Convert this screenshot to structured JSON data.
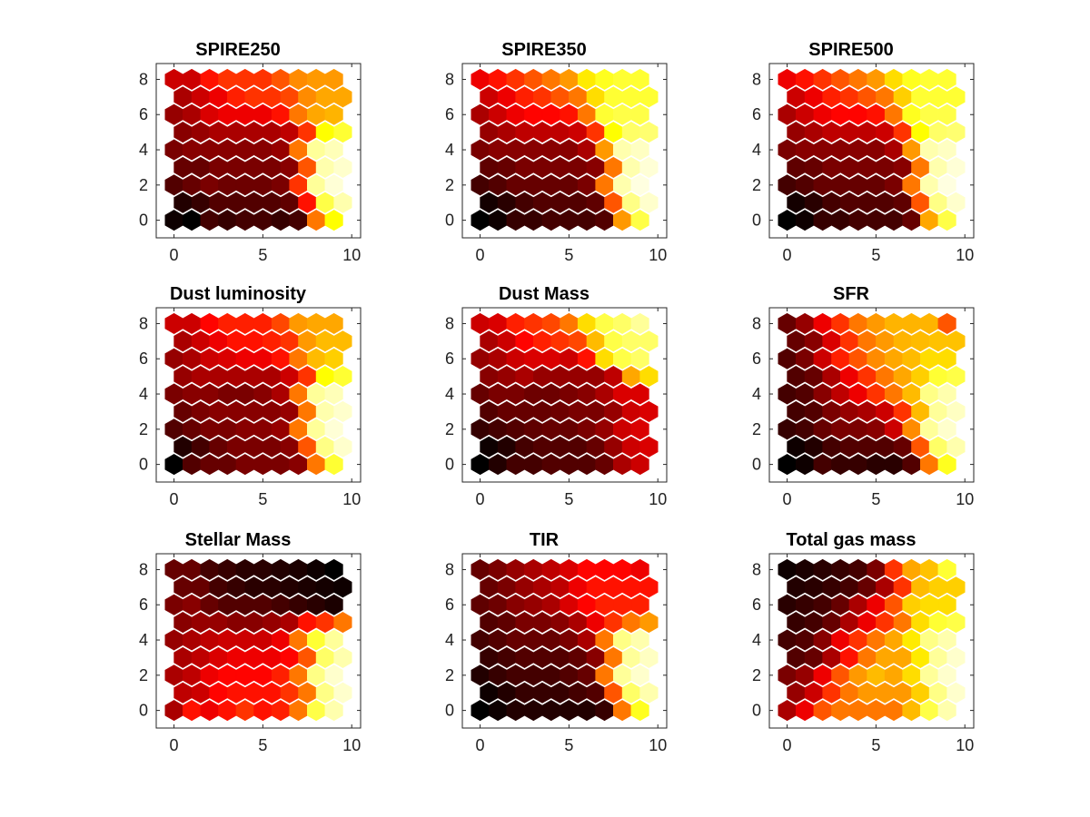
{
  "figure": {
    "background": "#ffffff",
    "colormap": "hot"
  },
  "chart_data": [
    {
      "type": "heatmap",
      "subtype": "hexagonal-som-component-plane",
      "title": "SPIRE250",
      "xticks": [
        "0",
        "5",
        "10"
      ],
      "yticks": [
        "0",
        "2",
        "4",
        "6",
        "8"
      ],
      "xlim": [
        -1,
        10.5
      ],
      "ylim": [
        -1,
        8.9
      ],
      "grid_cols": 10,
      "grid_rows": 9,
      "values": [
        [
          0.02,
          0.0,
          0.1,
          0.08,
          0.1,
          0.1,
          0.08,
          0.1,
          0.55,
          0.75
        ],
        [
          0.05,
          0.08,
          0.12,
          0.12,
          0.12,
          0.12,
          0.14,
          0.4,
          0.82,
          0.92
        ],
        [
          0.12,
          0.15,
          0.18,
          0.16,
          0.16,
          0.16,
          0.18,
          0.45,
          0.9,
          0.96
        ],
        [
          0.15,
          0.15,
          0.18,
          0.18,
          0.18,
          0.18,
          0.2,
          0.5,
          0.92,
          0.95
        ],
        [
          0.18,
          0.2,
          0.2,
          0.2,
          0.2,
          0.2,
          0.22,
          0.55,
          0.9,
          0.93
        ],
        [
          0.2,
          0.22,
          0.25,
          0.25,
          0.25,
          0.25,
          0.28,
          0.45,
          0.75,
          0.8
        ],
        [
          0.22,
          0.25,
          0.32,
          0.35,
          0.35,
          0.35,
          0.4,
          0.55,
          0.62,
          0.64
        ],
        [
          0.25,
          0.3,
          0.35,
          0.42,
          0.45,
          0.45,
          0.48,
          0.58,
          0.62,
          0.62
        ],
        [
          0.3,
          0.3,
          0.4,
          0.45,
          0.45,
          0.45,
          0.5,
          0.58,
          0.6,
          0.6
        ]
      ]
    },
    {
      "type": "heatmap",
      "subtype": "hexagonal-som-component-plane",
      "title": "SPIRE350",
      "xticks": [
        "0",
        "5",
        "10"
      ],
      "yticks": [
        "0",
        "2",
        "4",
        "6",
        "8"
      ],
      "xlim": [
        -1,
        10.5
      ],
      "ylim": [
        -1,
        8.9
      ],
      "grid_cols": 10,
      "grid_rows": 9,
      "values": [
        [
          0.0,
          0.02,
          0.08,
          0.08,
          0.1,
          0.1,
          0.1,
          0.12,
          0.6,
          0.82
        ],
        [
          0.03,
          0.06,
          0.1,
          0.12,
          0.12,
          0.12,
          0.14,
          0.5,
          0.88,
          0.95
        ],
        [
          0.1,
          0.12,
          0.15,
          0.15,
          0.15,
          0.15,
          0.18,
          0.55,
          0.92,
          0.97
        ],
        [
          0.14,
          0.15,
          0.18,
          0.18,
          0.18,
          0.18,
          0.2,
          0.55,
          0.92,
          0.96
        ],
        [
          0.18,
          0.2,
          0.2,
          0.2,
          0.2,
          0.2,
          0.25,
          0.6,
          0.92,
          0.94
        ],
        [
          0.22,
          0.25,
          0.28,
          0.28,
          0.28,
          0.3,
          0.45,
          0.75,
          0.85,
          0.86
        ],
        [
          0.25,
          0.3,
          0.35,
          0.38,
          0.38,
          0.4,
          0.55,
          0.8,
          0.82,
          0.82
        ],
        [
          0.3,
          0.35,
          0.42,
          0.45,
          0.5,
          0.55,
          0.7,
          0.8,
          0.8,
          0.8
        ],
        [
          0.35,
          0.4,
          0.45,
          0.5,
          0.55,
          0.6,
          0.72,
          0.78,
          0.8,
          0.8
        ]
      ]
    },
    {
      "type": "heatmap",
      "subtype": "hexagonal-som-component-plane",
      "title": "SPIRE500",
      "xticks": [
        "0",
        "5",
        "10"
      ],
      "yticks": [
        "0",
        "2",
        "4",
        "6",
        "8"
      ],
      "xlim": [
        -1,
        10.5
      ],
      "ylim": [
        -1,
        8.9
      ],
      "grid_cols": 10,
      "grid_rows": 9,
      "values": [
        [
          0.0,
          0.02,
          0.08,
          0.08,
          0.1,
          0.1,
          0.1,
          0.15,
          0.62,
          0.82
        ],
        [
          0.03,
          0.06,
          0.1,
          0.12,
          0.12,
          0.12,
          0.14,
          0.5,
          0.88,
          0.95
        ],
        [
          0.1,
          0.12,
          0.15,
          0.15,
          0.15,
          0.15,
          0.18,
          0.55,
          0.92,
          0.97
        ],
        [
          0.14,
          0.15,
          0.18,
          0.18,
          0.18,
          0.18,
          0.2,
          0.55,
          0.92,
          0.96
        ],
        [
          0.18,
          0.2,
          0.2,
          0.2,
          0.2,
          0.2,
          0.25,
          0.6,
          0.92,
          0.94
        ],
        [
          0.22,
          0.25,
          0.28,
          0.28,
          0.28,
          0.3,
          0.45,
          0.75,
          0.85,
          0.86
        ],
        [
          0.25,
          0.3,
          0.35,
          0.38,
          0.38,
          0.4,
          0.55,
          0.78,
          0.82,
          0.82
        ],
        [
          0.3,
          0.35,
          0.42,
          0.45,
          0.5,
          0.55,
          0.68,
          0.8,
          0.8,
          0.8
        ],
        [
          0.35,
          0.4,
          0.45,
          0.5,
          0.55,
          0.6,
          0.7,
          0.78,
          0.8,
          0.8
        ]
      ]
    },
    {
      "type": "heatmap",
      "subtype": "hexagonal-som-component-plane",
      "title": "Dust luminosity",
      "xticks": [
        "0",
        "5",
        "10"
      ],
      "yticks": [
        "0",
        "2",
        "4",
        "6",
        "8"
      ],
      "xlim": [
        -1,
        10.5
      ],
      "ylim": [
        -1,
        8.9
      ],
      "grid_cols": 10,
      "grid_rows": 9,
      "values": [
        [
          0.0,
          0.12,
          0.15,
          0.15,
          0.18,
          0.18,
          0.18,
          0.2,
          0.55,
          0.8
        ],
        [
          0.05,
          0.1,
          0.15,
          0.18,
          0.18,
          0.18,
          0.2,
          0.5,
          0.88,
          0.95
        ],
        [
          0.12,
          0.15,
          0.18,
          0.18,
          0.2,
          0.2,
          0.22,
          0.55,
          0.9,
          0.96
        ],
        [
          0.15,
          0.18,
          0.2,
          0.2,
          0.2,
          0.2,
          0.22,
          0.55,
          0.92,
          0.95
        ],
        [
          0.18,
          0.2,
          0.2,
          0.18,
          0.18,
          0.2,
          0.25,
          0.55,
          0.9,
          0.93
        ],
        [
          0.22,
          0.25,
          0.25,
          0.25,
          0.25,
          0.25,
          0.3,
          0.45,
          0.75,
          0.8
        ],
        [
          0.22,
          0.25,
          0.3,
          0.32,
          0.35,
          0.35,
          0.4,
          0.55,
          0.65,
          0.68
        ],
        [
          0.25,
          0.3,
          0.35,
          0.4,
          0.4,
          0.42,
          0.45,
          0.6,
          0.65,
          0.65
        ],
        [
          0.3,
          0.3,
          0.38,
          0.42,
          0.42,
          0.42,
          0.48,
          0.6,
          0.62,
          0.62
        ]
      ]
    },
    {
      "type": "heatmap",
      "subtype": "hexagonal-som-component-plane",
      "title": "Dust Mass",
      "xticks": [
        "0",
        "5",
        "10"
      ],
      "yticks": [
        "0",
        "2",
        "4",
        "6",
        "8"
      ],
      "xlim": [
        -1,
        10.5
      ],
      "ylim": [
        -1,
        8.9
      ],
      "grid_cols": 10,
      "grid_rows": 9,
      "values": [
        [
          0.0,
          0.05,
          0.1,
          0.1,
          0.12,
          0.12,
          0.12,
          0.15,
          0.25,
          0.3
        ],
        [
          0.02,
          0.05,
          0.1,
          0.12,
          0.12,
          0.12,
          0.15,
          0.22,
          0.3,
          0.32
        ],
        [
          0.08,
          0.1,
          0.12,
          0.14,
          0.15,
          0.15,
          0.18,
          0.22,
          0.3,
          0.32
        ],
        [
          0.12,
          0.15,
          0.15,
          0.15,
          0.16,
          0.18,
          0.18,
          0.22,
          0.3,
          0.32
        ],
        [
          0.15,
          0.18,
          0.18,
          0.16,
          0.16,
          0.18,
          0.2,
          0.25,
          0.32,
          0.32
        ],
        [
          0.2,
          0.22,
          0.25,
          0.22,
          0.22,
          0.22,
          0.22,
          0.28,
          0.62,
          0.7
        ],
        [
          0.22,
          0.25,
          0.3,
          0.32,
          0.32,
          0.3,
          0.4,
          0.7,
          0.82,
          0.85
        ],
        [
          0.25,
          0.3,
          0.38,
          0.42,
          0.45,
          0.48,
          0.65,
          0.82,
          0.85,
          0.85
        ],
        [
          0.3,
          0.32,
          0.42,
          0.45,
          0.48,
          0.55,
          0.7,
          0.82,
          0.85,
          0.9
        ]
      ]
    },
    {
      "type": "heatmap",
      "subtype": "hexagonal-som-component-plane",
      "title": "SFR",
      "xticks": [
        "0",
        "5",
        "10"
      ],
      "yticks": [
        "0",
        "2",
        "4",
        "6",
        "8"
      ],
      "xlim": [
        -1,
        10.5
      ],
      "ylim": [
        -1,
        8.9
      ],
      "grid_cols": 10,
      "grid_rows": 9,
      "values": [
        [
          0.0,
          0.02,
          0.1,
          0.08,
          0.08,
          0.06,
          0.06,
          0.12,
          0.55,
          0.78
        ],
        [
          0.02,
          0.05,
          0.1,
          0.12,
          0.12,
          0.12,
          0.15,
          0.5,
          0.85,
          0.92
        ],
        [
          0.08,
          0.1,
          0.15,
          0.18,
          0.18,
          0.2,
          0.3,
          0.58,
          0.9,
          0.95
        ],
        [
          0.1,
          0.12,
          0.18,
          0.22,
          0.25,
          0.3,
          0.45,
          0.65,
          0.9,
          0.94
        ],
        [
          0.1,
          0.12,
          0.2,
          0.28,
          0.35,
          0.45,
          0.55,
          0.65,
          0.88,
          0.92
        ],
        [
          0.12,
          0.15,
          0.25,
          0.35,
          0.45,
          0.55,
          0.62,
          0.68,
          0.8,
          0.82
        ],
        [
          0.12,
          0.18,
          0.3,
          0.42,
          0.5,
          0.58,
          0.62,
          0.65,
          0.7,
          0.7
        ],
        [
          0.15,
          0.2,
          0.32,
          0.45,
          0.55,
          0.6,
          0.64,
          0.65,
          0.66,
          0.66
        ],
        [
          0.15,
          0.22,
          0.35,
          0.45,
          0.55,
          0.6,
          0.64,
          0.64,
          0.64,
          0.5
        ]
      ]
    },
    {
      "type": "heatmap",
      "subtype": "hexagonal-som-component-plane",
      "title": "Stellar Mass",
      "xticks": [
        "0",
        "5",
        "10"
      ],
      "yticks": [
        "0",
        "2",
        "4",
        "6",
        "8"
      ],
      "xlim": [
        -1,
        10.5
      ],
      "ylim": [
        -1,
        8.9
      ],
      "grid_cols": 10,
      "grid_rows": 9,
      "values": [
        [
          0.25,
          0.4,
          0.35,
          0.4,
          0.45,
          0.4,
          0.42,
          0.55,
          0.82,
          0.92
        ],
        [
          0.28,
          0.3,
          0.38,
          0.4,
          0.4,
          0.4,
          0.45,
          0.55,
          0.88,
          0.95
        ],
        [
          0.25,
          0.28,
          0.35,
          0.38,
          0.38,
          0.38,
          0.42,
          0.55,
          0.88,
          0.95
        ],
        [
          0.25,
          0.28,
          0.32,
          0.35,
          0.35,
          0.35,
          0.38,
          0.5,
          0.85,
          0.92
        ],
        [
          0.22,
          0.25,
          0.28,
          0.3,
          0.3,
          0.3,
          0.35,
          0.55,
          0.8,
          0.9
        ],
        [
          0.2,
          0.22,
          0.22,
          0.2,
          0.2,
          0.22,
          0.25,
          0.4,
          0.45,
          0.55
        ],
        [
          0.18,
          0.2,
          0.15,
          0.12,
          0.12,
          0.12,
          0.1,
          0.08,
          0.06,
          0.04
        ],
        [
          0.15,
          0.15,
          0.1,
          0.08,
          0.06,
          0.06,
          0.05,
          0.04,
          0.03,
          0.02
        ],
        [
          0.15,
          0.15,
          0.1,
          0.08,
          0.06,
          0.06,
          0.05,
          0.04,
          0.02,
          0.0
        ]
      ]
    },
    {
      "type": "heatmap",
      "subtype": "hexagonal-som-component-plane",
      "title": "TIR",
      "xticks": [
        "0",
        "5",
        "10"
      ],
      "yticks": [
        "0",
        "2",
        "4",
        "6",
        "8"
      ],
      "xlim": [
        -1,
        10.5
      ],
      "ylim": [
        -1,
        8.9
      ],
      "grid_cols": 10,
      "grid_rows": 9,
      "values": [
        [
          0.0,
          0.02,
          0.05,
          0.05,
          0.05,
          0.05,
          0.05,
          0.08,
          0.55,
          0.78
        ],
        [
          0.02,
          0.05,
          0.08,
          0.08,
          0.08,
          0.1,
          0.12,
          0.5,
          0.85,
          0.92
        ],
        [
          0.05,
          0.08,
          0.1,
          0.1,
          0.1,
          0.12,
          0.15,
          0.55,
          0.9,
          0.95
        ],
        [
          0.08,
          0.1,
          0.12,
          0.12,
          0.12,
          0.14,
          0.2,
          0.55,
          0.9,
          0.94
        ],
        [
          0.1,
          0.12,
          0.15,
          0.15,
          0.15,
          0.18,
          0.25,
          0.55,
          0.88,
          0.92
        ],
        [
          0.12,
          0.14,
          0.18,
          0.18,
          0.2,
          0.25,
          0.35,
          0.45,
          0.55,
          0.6
        ],
        [
          0.14,
          0.16,
          0.2,
          0.22,
          0.25,
          0.32,
          0.38,
          0.42,
          0.42,
          0.42
        ],
        [
          0.15,
          0.18,
          0.22,
          0.25,
          0.28,
          0.35,
          0.4,
          0.4,
          0.4,
          0.4
        ],
        [
          0.15,
          0.18,
          0.22,
          0.25,
          0.28,
          0.32,
          0.38,
          0.38,
          0.38,
          0.35
        ]
      ]
    },
    {
      "type": "heatmap",
      "subtype": "hexagonal-som-component-plane",
      "title": "Total gas mass",
      "xticks": [
        "0",
        "5",
        "10"
      ],
      "yticks": [
        "0",
        "2",
        "4",
        "6",
        "8"
      ],
      "xlim": [
        -1,
        10.5
      ],
      "ylim": [
        -1,
        8.9
      ],
      "grid_cols": 10,
      "grid_rows": 9,
      "values": [
        [
          0.25,
          0.35,
          0.5,
          0.55,
          0.55,
          0.55,
          0.55,
          0.65,
          0.82,
          0.92
        ],
        [
          0.22,
          0.3,
          0.45,
          0.55,
          0.6,
          0.6,
          0.6,
          0.68,
          0.88,
          0.95
        ],
        [
          0.18,
          0.22,
          0.35,
          0.5,
          0.6,
          0.65,
          0.62,
          0.7,
          0.9,
          0.95
        ],
        [
          0.12,
          0.15,
          0.25,
          0.4,
          0.55,
          0.62,
          0.62,
          0.72,
          0.9,
          0.95
        ],
        [
          0.1,
          0.12,
          0.2,
          0.35,
          0.45,
          0.55,
          0.62,
          0.72,
          0.88,
          0.92
        ],
        [
          0.08,
          0.1,
          0.15,
          0.25,
          0.35,
          0.45,
          0.55,
          0.7,
          0.8,
          0.82
        ],
        [
          0.06,
          0.08,
          0.1,
          0.15,
          0.25,
          0.35,
          0.5,
          0.68,
          0.7,
          0.7
        ],
        [
          0.05,
          0.06,
          0.08,
          0.1,
          0.15,
          0.25,
          0.45,
          0.65,
          0.68,
          0.68
        ],
        [
          0.02,
          0.04,
          0.06,
          0.08,
          0.1,
          0.18,
          0.45,
          0.62,
          0.66,
          0.8
        ]
      ]
    }
  ]
}
